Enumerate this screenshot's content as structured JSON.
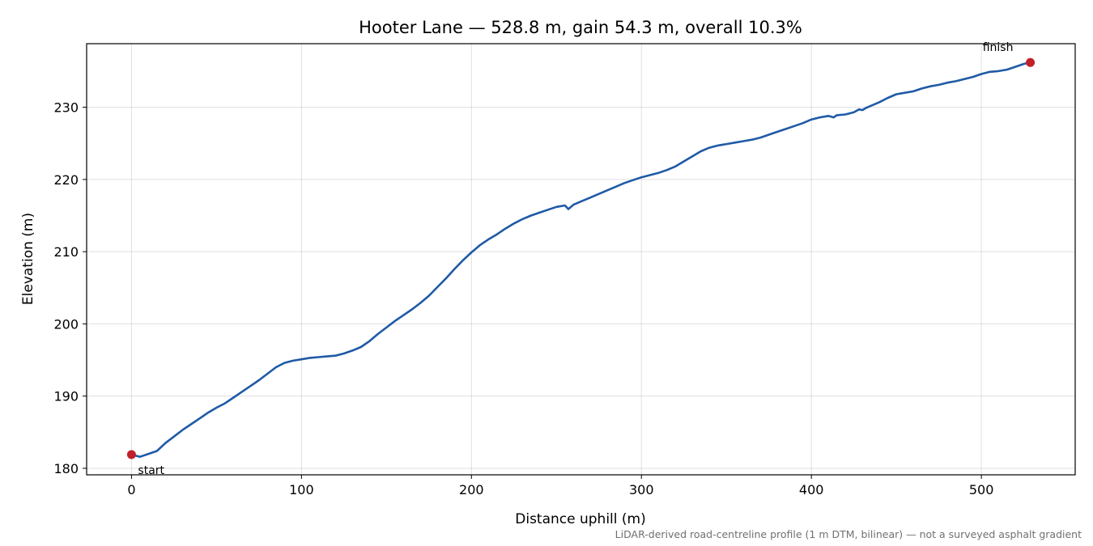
{
  "chart_data": {
    "type": "line",
    "title": "Hooter Lane — 528.8 m, gain 54.3 m, overall 10.3%",
    "xlabel": "Distance uphill (m)",
    "ylabel": "Elevation (m)",
    "xlim": [
      -26.4,
      555.2
    ],
    "ylim": [
      179.1,
      238.8
    ],
    "xticks": [
      0,
      100,
      200,
      300,
      400,
      500
    ],
    "yticks": [
      180,
      190,
      200,
      210,
      220,
      230
    ],
    "grid": true,
    "footnote": "LiDAR-derived road-centreline profile (1 m DTM, bilinear) — not a surveyed asphalt gradient",
    "colors": {
      "line": "#1f5aa6",
      "markers": "#c0202a",
      "grid": "#dcdcdc"
    },
    "series": [
      {
        "x": [
          0,
          5,
          10,
          15,
          20,
          25,
          30,
          35,
          40,
          45,
          50,
          55,
          60,
          65,
          70,
          75,
          80,
          85,
          90,
          95,
          100,
          105,
          110,
          115,
          120,
          125,
          130,
          135,
          140,
          145,
          150,
          155,
          160,
          165,
          170,
          175,
          180,
          185,
          190,
          195,
          200,
          205,
          210,
          215,
          220,
          225,
          230,
          235,
          240,
          245,
          250,
          255,
          257,
          260,
          265,
          270,
          275,
          280,
          285,
          290,
          295,
          300,
          305,
          310,
          315,
          320,
          325,
          330,
          335,
          340,
          345,
          350,
          355,
          360,
          365,
          370,
          375,
          380,
          385,
          390,
          395,
          400,
          405,
          410,
          413,
          415,
          420,
          425,
          428,
          430,
          432,
          434,
          436,
          440,
          445,
          450,
          455,
          460,
          465,
          470,
          475,
          480,
          485,
          490,
          495,
          500,
          505,
          510,
          515,
          520,
          525,
          528.8
        ],
        "y": [
          181.9,
          181.6,
          182.0,
          182.4,
          183.5,
          184.4,
          185.3,
          186.1,
          186.9,
          187.7,
          188.4,
          189.0,
          189.8,
          190.6,
          191.4,
          192.2,
          193.1,
          194.0,
          194.6,
          194.9,
          195.1,
          195.3,
          195.4,
          195.5,
          195.6,
          195.9,
          196.3,
          196.8,
          197.6,
          198.6,
          199.5,
          200.4,
          201.2,
          202.0,
          202.9,
          203.9,
          205.1,
          206.3,
          207.6,
          208.8,
          209.9,
          210.9,
          211.7,
          212.4,
          213.2,
          213.9,
          214.5,
          215.0,
          215.4,
          215.8,
          216.2,
          216.4,
          215.9,
          216.5,
          217.0,
          217.5,
          218.0,
          218.5,
          219.0,
          219.5,
          219.9,
          220.3,
          220.6,
          220.9,
          221.3,
          221.8,
          222.5,
          223.2,
          223.9,
          224.4,
          224.7,
          224.9,
          225.1,
          225.3,
          225.5,
          225.8,
          226.2,
          226.6,
          227.0,
          227.4,
          227.8,
          228.3,
          228.6,
          228.8,
          228.6,
          228.9,
          229.0,
          229.3,
          229.7,
          229.6,
          229.9,
          230.1,
          230.3,
          230.7,
          231.3,
          231.8,
          232.0,
          232.2,
          232.6,
          232.9,
          233.1,
          233.4,
          233.6,
          233.9,
          234.2,
          234.6,
          234.9,
          235.0,
          235.2,
          235.6,
          236.0,
          236.2
        ]
      }
    ],
    "annotations": [
      {
        "text": "start",
        "x": 0,
        "y": 181.9
      },
      {
        "text": "finish",
        "x": 528.8,
        "y": 236.2
      }
    ]
  }
}
